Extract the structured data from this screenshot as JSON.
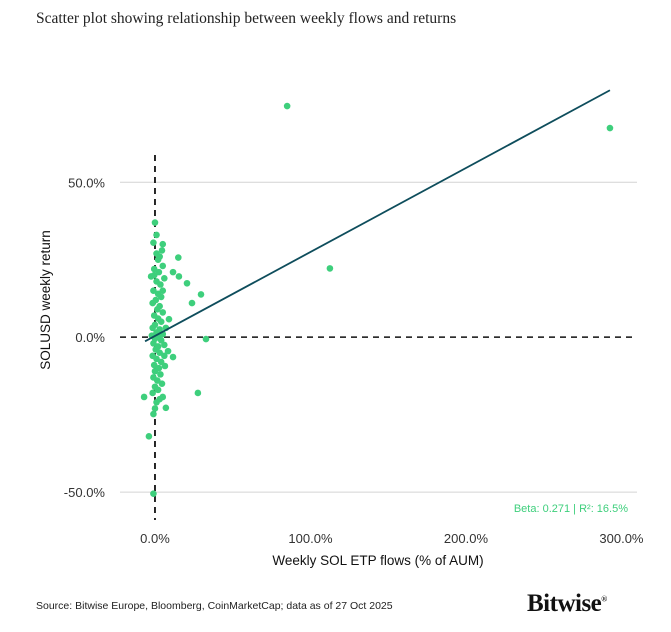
{
  "chart_data": {
    "type": "scatter",
    "title": "Scatter plot showing relationship between weekly flows and returns",
    "xlabel": "Weekly SOL ETP flows (% of AUM)",
    "ylabel": "SOLUSD weekly return",
    "xlim": [
      -22.5,
      310
    ],
    "ylim": [
      -59,
      83
    ],
    "x_ticks": [
      0,
      100,
      200,
      300
    ],
    "x_tick_labels": [
      "0.0%",
      "100.0%",
      "200.0%",
      "300.0%"
    ],
    "y_ticks": [
      -50,
      0,
      50
    ],
    "y_tick_labels": [
      "-50.0%",
      "0.0%",
      "50.0%"
    ],
    "grid": "horizontal",
    "reference_lines": {
      "x": 0,
      "y": 0,
      "style": "dashed"
    },
    "point_color": "#3ecf7c",
    "line_color": "#0e4d5c",
    "regression": {
      "slope": 0.271,
      "intercept": 0.4,
      "x_range": [
        -6.4,
        292.6
      ]
    },
    "annotation": "Beta: 0.271 | R²: 16.5%",
    "points": [
      [
        0,
        37
      ],
      [
        -1,
        30.5
      ],
      [
        5,
        30
      ],
      [
        4.5,
        28
      ],
      [
        2,
        25
      ],
      [
        15,
        25.7
      ],
      [
        5,
        23
      ],
      [
        11.6,
        21
      ],
      [
        15.4,
        19.6
      ],
      [
        -2.5,
        19.6
      ],
      [
        20.6,
        17.4
      ],
      [
        29.6,
        13.8
      ],
      [
        23.8,
        11
      ],
      [
        9,
        5.8
      ],
      [
        32.8,
        -0.6
      ],
      [
        8.4,
        -4.5
      ],
      [
        11.6,
        -6.4
      ],
      [
        6.4,
        -9.3
      ],
      [
        -7,
        -19.3
      ],
      [
        27.6,
        -18
      ],
      [
        5,
        -19.3
      ],
      [
        7,
        -22.8
      ],
      [
        -1,
        -24.8
      ],
      [
        -3.9,
        -32
      ],
      [
        -1,
        -50.5
      ],
      [
        85,
        74.6
      ],
      [
        112.5,
        22.2
      ],
      [
        292.6,
        67.5
      ],
      [
        1,
        27
      ],
      [
        3,
        26
      ],
      [
        -0.5,
        22
      ],
      [
        2.5,
        21
      ],
      [
        1,
        18
      ],
      [
        3.5,
        17
      ],
      [
        -1,
        15
      ],
      [
        2,
        14
      ],
      [
        4,
        13
      ],
      [
        0.5,
        12
      ],
      [
        -1.5,
        11
      ],
      [
        3,
        10
      ],
      [
        1.5,
        9
      ],
      [
        5,
        8
      ],
      [
        -0.5,
        7
      ],
      [
        2,
        6
      ],
      [
        4,
        5
      ],
      [
        0,
        4
      ],
      [
        -1.5,
        3
      ],
      [
        3,
        2.5
      ],
      [
        1,
        1.5
      ],
      [
        5,
        1
      ],
      [
        -2,
        0.5
      ],
      [
        2,
        0
      ],
      [
        0,
        -0.5
      ],
      [
        4,
        -1
      ],
      [
        -1,
        -2
      ],
      [
        2,
        -3
      ],
      [
        6,
        -2.5
      ],
      [
        0.5,
        -4
      ],
      [
        3,
        -5
      ],
      [
        -1.5,
        -6
      ],
      [
        1,
        -7
      ],
      [
        4,
        -8
      ],
      [
        -0.5,
        -9
      ],
      [
        2.5,
        -10
      ],
      [
        0,
        -11
      ],
      [
        3.5,
        -12
      ],
      [
        -1,
        -13
      ],
      [
        1.5,
        -14
      ],
      [
        4.5,
        -15
      ],
      [
        0,
        -16
      ],
      [
        2,
        -17
      ],
      [
        -1.5,
        -18
      ],
      [
        3,
        -20
      ],
      [
        1,
        -21
      ],
      [
        0,
        -23
      ],
      [
        6,
        -6
      ],
      [
        7,
        3
      ],
      [
        5,
        15
      ],
      [
        6,
        19
      ],
      [
        1,
        33
      ],
      [
        -0.5,
        20
      ]
    ]
  },
  "source": "Source: Bitwise Europe, Bloomberg, CoinMarketCap; data as of 27 Oct 2025",
  "logo": "Bitwise"
}
